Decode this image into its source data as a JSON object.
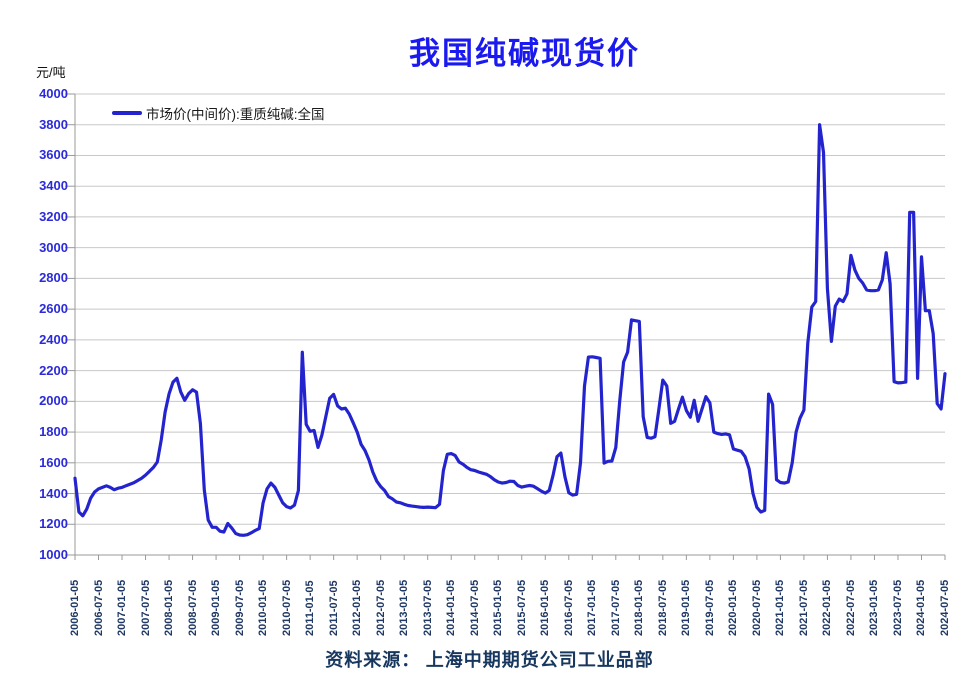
{
  "title": "我国纯碱现货价",
  "unit_label": "元/吨",
  "legend": {
    "label": "市场价(中间价):重质纯碱:全国"
  },
  "source": "资料来源： 上海中期期货公司工业品部",
  "colors": {
    "title": "#1a1af0",
    "line": "#2424cf",
    "grid": "#c8c8c8",
    "axis": "#999999",
    "y_label": "#2b2bd9",
    "x_label": "#1f3864",
    "source": "#17375e",
    "legend_text": "#1a1a1a"
  },
  "chart_data": {
    "type": "line",
    "title": "我国纯碱现货价",
    "xlabel": "",
    "ylabel": "元/吨",
    "ylim": [
      1000,
      4000
    ],
    "y_tick_step": 200,
    "grid": true,
    "legend_position": "top-left",
    "y_tick_labels": [
      "1000",
      "1200",
      "1400",
      "1600",
      "1800",
      "2000",
      "2200",
      "2400",
      "2600",
      "2800",
      "3000",
      "3200",
      "3400",
      "3600",
      "3800",
      "4000"
    ],
    "x_tick_labels": [
      "2006-01-05",
      "2006-07-05",
      "2007-01-05",
      "2007-07-05",
      "2008-01-05",
      "2008-07-05",
      "2009-01-05",
      "2009-07-05",
      "2010-01-05",
      "2010-07-05",
      "2011-01-05",
      "2011-07-05",
      "2012-01-05",
      "2012-07-05",
      "2013-01-05",
      "2013-07-05",
      "2014-01-05",
      "2014-07-05",
      "2015-01-05",
      "2015-07-05",
      "2016-01-05",
      "2016-07-05",
      "2017-01-05",
      "2017-07-05",
      "2018-01-05",
      "2018-07-05",
      "2019-01-05",
      "2019-07-05",
      "2020-01-05",
      "2020-07-05",
      "2021-01-05",
      "2021-07-05",
      "2022-01-05",
      "2022-07-05",
      "2023-01-05",
      "2023-07-05",
      "2024-01-05",
      "2024-07-05"
    ],
    "series": [
      {
        "name": "市场价(中间价):重质纯碱:全国",
        "frequency": "monthly",
        "start_month": "2006-01",
        "end_month": "2024-07",
        "values": [
          1500,
          1280,
          1255,
          1300,
          1370,
          1410,
          1430,
          1440,
          1450,
          1440,
          1425,
          1435,
          1440,
          1450,
          1460,
          1470,
          1485,
          1500,
          1520,
          1545,
          1570,
          1605,
          1748,
          1930,
          2050,
          2125,
          2150,
          2060,
          2007,
          2050,
          2075,
          2060,
          1855,
          1423,
          1228,
          1180,
          1180,
          1155,
          1150,
          1205,
          1175,
          1140,
          1130,
          1128,
          1132,
          1145,
          1160,
          1172,
          1340,
          1430,
          1468,
          1440,
          1390,
          1340,
          1315,
          1306,
          1325,
          1420,
          2320,
          1850,
          1805,
          1810,
          1700,
          1780,
          1900,
          2020,
          2045,
          1970,
          1950,
          1955,
          1917,
          1860,
          1800,
          1720,
          1680,
          1620,
          1540,
          1480,
          1445,
          1420,
          1380,
          1365,
          1345,
          1340,
          1330,
          1322,
          1318,
          1315,
          1312,
          1310,
          1312,
          1310,
          1308,
          1330,
          1550,
          1655,
          1660,
          1648,
          1605,
          1590,
          1570,
          1555,
          1550,
          1540,
          1532,
          1525,
          1510,
          1490,
          1475,
          1468,
          1472,
          1480,
          1478,
          1452,
          1442,
          1448,
          1452,
          1448,
          1432,
          1415,
          1403,
          1420,
          1520,
          1640,
          1663,
          1510,
          1405,
          1390,
          1395,
          1600,
          2100,
          2288,
          2290,
          2285,
          2280,
          1598,
          1610,
          1612,
          1700,
          2000,
          2256,
          2320,
          2530,
          2525,
          2520,
          1900,
          1765,
          1760,
          1770,
          1950,
          2138,
          2100,
          1857,
          1870,
          1950,
          2027,
          1940,
          1897,
          2007,
          1870,
          1950,
          2030,
          1990,
          1800,
          1790,
          1785,
          1788,
          1782,
          1690,
          1682,
          1675,
          1640,
          1560,
          1400,
          1310,
          1280,
          1290,
          2047,
          1980,
          1490,
          1472,
          1468,
          1475,
          1600,
          1800,
          1890,
          1943,
          2380,
          2613,
          2650,
          3800,
          3620,
          2735,
          2390,
          2620,
          2665,
          2650,
          2700,
          2950,
          2854,
          2800,
          2770,
          2725,
          2720,
          2720,
          2725,
          2790,
          2967,
          2765,
          2128,
          2120,
          2122,
          2125,
          3230,
          3230,
          2150,
          2940,
          2590,
          2590,
          2440,
          1985,
          1950,
          2180
        ]
      }
    ]
  }
}
